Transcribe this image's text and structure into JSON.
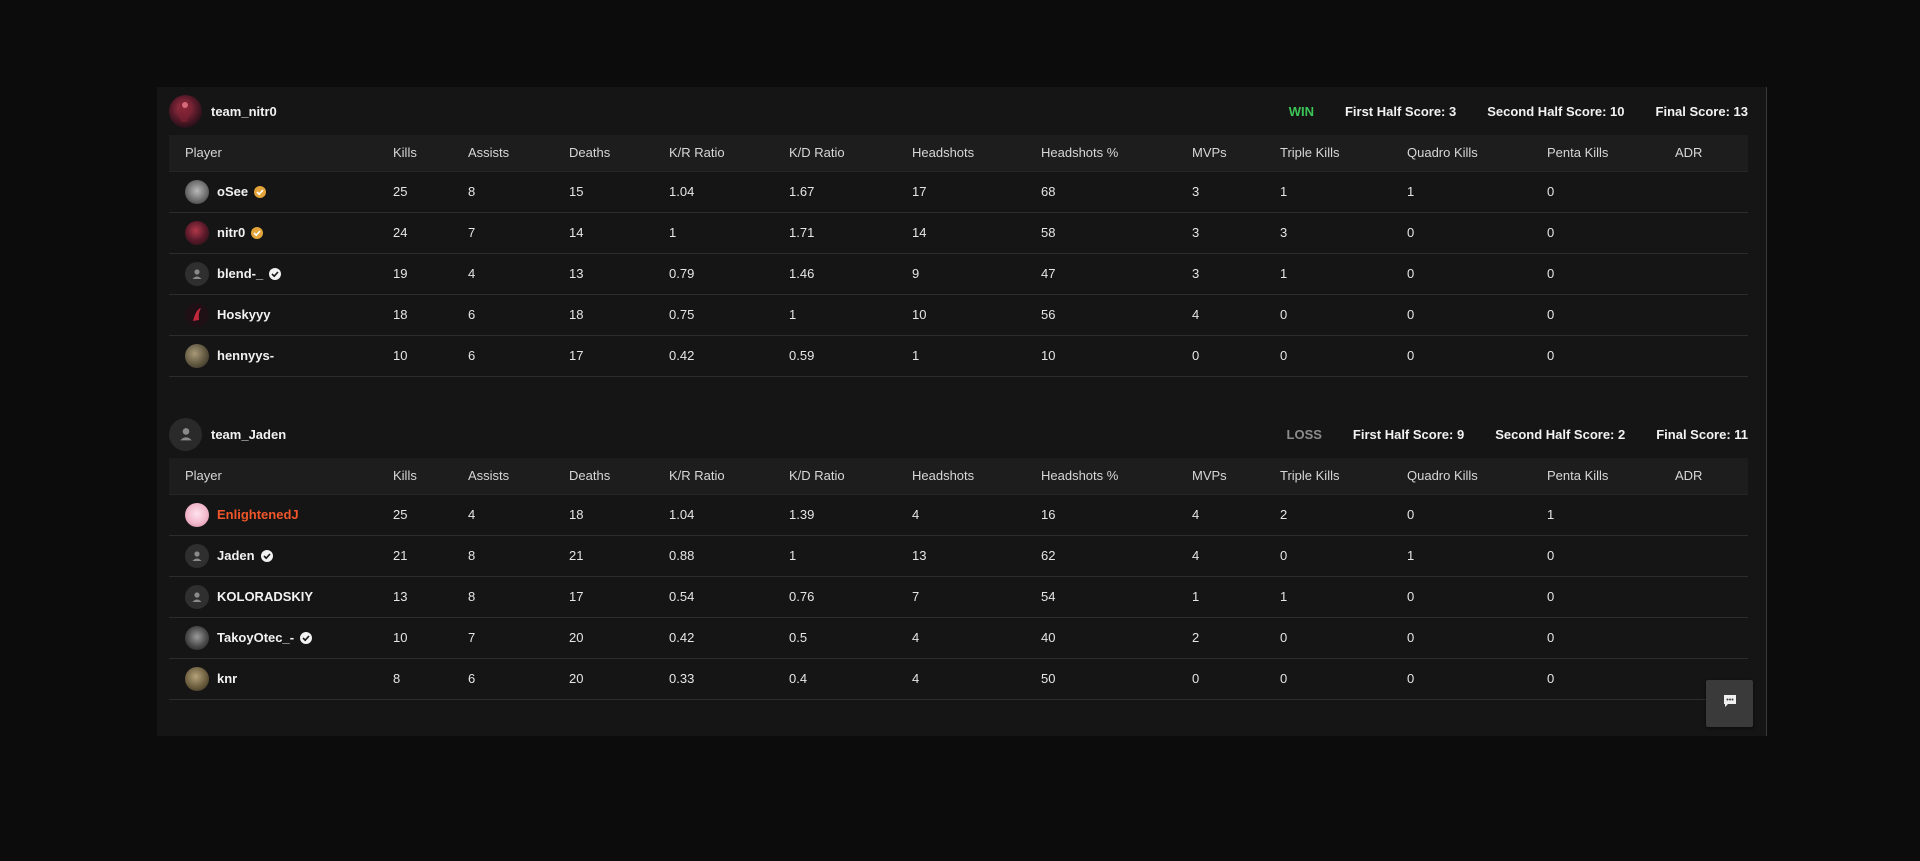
{
  "colors": {
    "win": "#3dc456",
    "loss": "#8c8c8c",
    "highlight_player": "#f0562a",
    "background": "#0c0c0c",
    "panel": "#151515"
  },
  "columns": [
    "Player",
    "Kills",
    "Assists",
    "Deaths",
    "K/R Ratio",
    "K/D Ratio",
    "Headshots",
    "Headshots %",
    "MVPs",
    "Triple Kills",
    "Quadro Kills",
    "Penta Kills",
    "ADR"
  ],
  "teams": [
    {
      "name": "team_nitr0",
      "avatar_icon": "team-nitr0-avatar",
      "result": "WIN",
      "first_half": "First Half Score: 3",
      "second_half": "Second Half Score: 10",
      "final": "Final Score: 13",
      "players": [
        {
          "name": "oSee",
          "avatar": "photo-avatar",
          "badge": "gold-verified-icon",
          "stats": [
            "25",
            "8",
            "15",
            "1.04",
            "1.67",
            "17",
            "68",
            "3",
            "1",
            "1",
            "0",
            ""
          ]
        },
        {
          "name": "nitr0",
          "avatar": "photo-avatar",
          "badge": "gold-verified-icon",
          "stats": [
            "24",
            "7",
            "14",
            "1",
            "1.71",
            "14",
            "58",
            "3",
            "3",
            "0",
            "0",
            ""
          ]
        },
        {
          "name": "blend-_",
          "avatar": "default-user-avatar",
          "badge": "verified-icon",
          "stats": [
            "19",
            "4",
            "13",
            "0.79",
            "1.46",
            "9",
            "47",
            "3",
            "1",
            "0",
            "0",
            ""
          ]
        },
        {
          "name": "Hoskyyy",
          "avatar": "photo-avatar",
          "badge": "",
          "stats": [
            "18",
            "6",
            "18",
            "0.75",
            "1",
            "10",
            "56",
            "4",
            "0",
            "0",
            "0",
            ""
          ]
        },
        {
          "name": "hennyys-",
          "avatar": "photo-avatar",
          "badge": "",
          "stats": [
            "10",
            "6",
            "17",
            "0.42",
            "0.59",
            "1",
            "10",
            "0",
            "0",
            "0",
            "0",
            ""
          ]
        }
      ]
    },
    {
      "name": "team_Jaden",
      "avatar_icon": "default-team-avatar",
      "result": "LOSS",
      "first_half": "First Half Score: 9",
      "second_half": "Second Half Score: 2",
      "final": "Final Score: 11",
      "players": [
        {
          "name": "EnlightenedJ",
          "avatar": "photo-avatar",
          "badge": "",
          "highlight": true,
          "stats": [
            "25",
            "4",
            "18",
            "1.04",
            "1.39",
            "4",
            "16",
            "4",
            "2",
            "0",
            "1",
            ""
          ]
        },
        {
          "name": "Jaden",
          "avatar": "default-user-avatar",
          "badge": "verified-icon",
          "stats": [
            "21",
            "8",
            "21",
            "0.88",
            "1",
            "13",
            "62",
            "4",
            "0",
            "1",
            "0",
            ""
          ]
        },
        {
          "name": "KOLORADSKIY",
          "avatar": "default-user-avatar",
          "badge": "",
          "stats": [
            "13",
            "8",
            "17",
            "0.54",
            "0.76",
            "7",
            "54",
            "1",
            "1",
            "0",
            "0",
            ""
          ]
        },
        {
          "name": "TakoyOtec_-",
          "avatar": "photo-avatar",
          "badge": "verified-icon",
          "stats": [
            "10",
            "7",
            "20",
            "0.42",
            "0.5",
            "4",
            "40",
            "2",
            "0",
            "0",
            "0",
            ""
          ]
        },
        {
          "name": "knr",
          "avatar": "photo-avatar",
          "badge": "",
          "stats": [
            "8",
            "6",
            "20",
            "0.33",
            "0.4",
            "4",
            "50",
            "0",
            "0",
            "0",
            "0",
            ""
          ]
        }
      ]
    }
  ],
  "chat_button_icon": "chat-icon"
}
